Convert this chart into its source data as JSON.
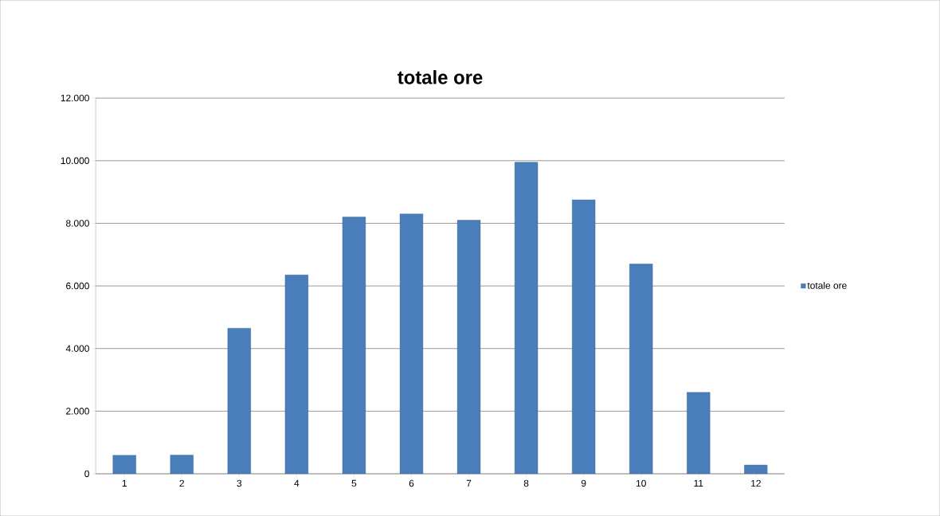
{
  "chart_data": {
    "type": "bar",
    "title": "totale ore",
    "categories": [
      "1",
      "2",
      "3",
      "4",
      "5",
      "6",
      "7",
      "8",
      "9",
      "10",
      "11",
      "12"
    ],
    "series": [
      {
        "name": "totale ore",
        "color": "#4a7ebb",
        "values": [
          590,
          600,
          4650,
          6350,
          8200,
          8300,
          8100,
          9950,
          8750,
          6700,
          2600,
          280
        ]
      }
    ],
    "ylim": [
      0,
      12000
    ],
    "yticks": [
      {
        "value": 0,
        "label": "0"
      },
      {
        "value": 2000,
        "label": "2.000"
      },
      {
        "value": 4000,
        "label": "4.000"
      },
      {
        "value": 6000,
        "label": "6.000"
      },
      {
        "value": 8000,
        "label": "8.000"
      },
      {
        "value": 10000,
        "label": "10.000"
      },
      {
        "value": 12000,
        "label": "12.000"
      }
    ],
    "grid": "y",
    "legend": "right"
  }
}
